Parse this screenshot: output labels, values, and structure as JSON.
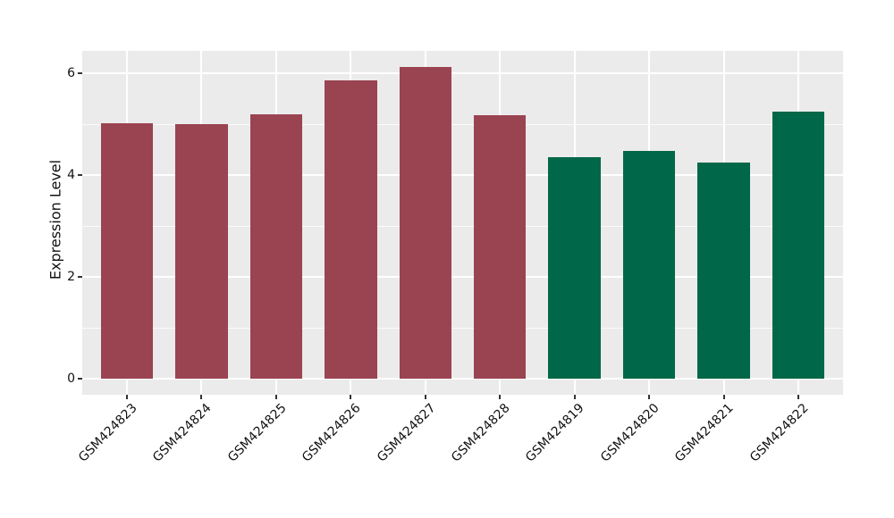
{
  "chart_data": {
    "type": "bar",
    "title": "",
    "xlabel": "",
    "ylabel": "Expression Level",
    "categories": [
      "GSM424823",
      "GSM424824",
      "GSM424825",
      "GSM424826",
      "GSM424827",
      "GSM424828",
      "GSM424819",
      "GSM424820",
      "GSM424821",
      "GSM424822"
    ],
    "values": [
      5.02,
      5.0,
      5.19,
      5.86,
      6.13,
      5.17,
      4.35,
      4.48,
      4.25,
      5.25
    ],
    "bar_colors": [
      "#9a4351",
      "#9a4351",
      "#9a4351",
      "#9a4351",
      "#9a4351",
      "#9a4351",
      "#006748",
      "#006748",
      "#006748",
      "#006748"
    ],
    "color_groups": [
      {
        "color": "#9a4351",
        "categories": [
          "GSM424823",
          "GSM424824",
          "GSM424825",
          "GSM424826",
          "GSM424827",
          "GSM424828"
        ]
      },
      {
        "color": "#006748",
        "categories": [
          "GSM424819",
          "GSM424820",
          "GSM424821",
          "GSM424822"
        ]
      }
    ],
    "ylim": [
      -0.32,
      6.43
    ],
    "yticks": [
      0,
      2,
      4,
      6
    ],
    "ytick_labels": [
      "0",
      "2",
      "4",
      "6"
    ],
    "yticks_minor": [
      1,
      3,
      5
    ],
    "x_tick_rotation": -45,
    "grid": "on",
    "legend": "none",
    "colors": {
      "panel_background": "#ebebeb",
      "grid_major": "#ffffff",
      "grid_minor": "#ffffff",
      "tick_mark": "#333333",
      "axis_text": "#111111",
      "figure_background": "#ffffff"
    }
  }
}
